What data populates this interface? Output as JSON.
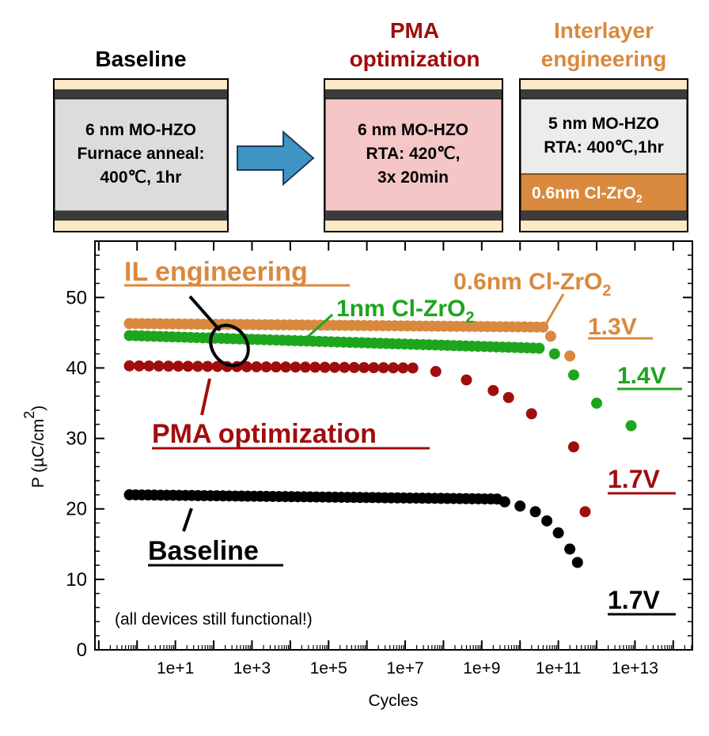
{
  "panels": [
    {
      "title_lines": [
        "Baseline"
      ],
      "title_color": "#000000",
      "fill": "#dcdcdc",
      "lines": [
        "6 nm MO-HZO",
        "Furnace anneal:",
        "400℃, 1hr"
      ]
    },
    {
      "title_lines": [
        "PMA",
        "optimization"
      ],
      "title_color": "#a00d0d",
      "fill": "#f4c6c6",
      "lines": [
        "6 nm MO-HZO",
        "RTA: 420℃,",
        "3x 20min"
      ]
    },
    {
      "title_lines": [
        "Interlayer",
        "engineering"
      ],
      "title_color": "#d9893e",
      "fill": "#ececec",
      "lines": [
        "5 nm MO-HZO",
        "RTA: 400℃,1hr"
      ],
      "interlayer": "0.6nm Cl-ZrO",
      "interlayer_sub": "2",
      "interlayer_fill": "#d9893e"
    }
  ],
  "colors": {
    "electrode": "#fbe8c4",
    "dark_layer": "#3b3b3b",
    "arrow": "#3f94c4"
  },
  "chart_data": {
    "type": "scatter",
    "xlabel": "Cycles",
    "ylabel": "P (µC/cm",
    "ylabel_sup": "2",
    "ylabel_close": ")",
    "x_scale": "log",
    "xlim": [
      1,
      100000000000000.0
    ],
    "ylim": [
      0,
      58
    ],
    "y_ticks": [
      0,
      10,
      20,
      30,
      40,
      50
    ],
    "x_tick_labels": [
      "1e+1",
      "1e+3",
      "1e+5",
      "1e+7",
      "1e+9",
      "1e+11",
      "1e+13"
    ],
    "x_tick_exponents": [
      1,
      3,
      5,
      7,
      9,
      11,
      13
    ],
    "grid": false,
    "series": [
      {
        "key": "il",
        "color": "#d9893e",
        "radius": 7,
        "points": [
          [
            -0.2,
            46.3
          ],
          [
            10.8,
            44.5
          ],
          [
            11.3,
            41.7
          ]
        ],
        "flat": [
          -0.2,
          10.6,
          46.3,
          45.8
        ],
        "n": 68
      },
      {
        "key": "cl1",
        "color": "#1ea51e",
        "radius": 7,
        "points": [
          [
            -0.2,
            44.6
          ],
          [
            10.9,
            42.0
          ],
          [
            11.4,
            39.0
          ],
          [
            12.0,
            35.0
          ],
          [
            12.9,
            31.8
          ]
        ],
        "flat": [
          -0.2,
          10.5,
          44.6,
          42.8
        ],
        "n": 68
      },
      {
        "key": "pma",
        "color": "#a00d0d",
        "radius": 7,
        "points": [
          [
            -0.2,
            40.3
          ],
          [
            7.8,
            39.5
          ],
          [
            8.6,
            38.3
          ],
          [
            9.3,
            36.8
          ],
          [
            9.7,
            35.8
          ],
          [
            10.3,
            33.5
          ],
          [
            11.4,
            28.8
          ],
          [
            11.7,
            19.6
          ]
        ],
        "flat": [
          -0.2,
          7.2,
          40.3,
          40.0
        ],
        "n": 30
      },
      {
        "key": "base",
        "color": "#000000",
        "radius": 7,
        "points": [
          [
            -0.2,
            22.0
          ],
          [
            9.6,
            21.0
          ],
          [
            10.0,
            20.4
          ],
          [
            10.4,
            19.6
          ],
          [
            10.7,
            18.3
          ],
          [
            11.0,
            16.6
          ],
          [
            11.3,
            14.3
          ],
          [
            11.5,
            12.4
          ]
        ],
        "flat": [
          -0.2,
          9.4,
          22.0,
          21.4
        ],
        "n": 60
      }
    ],
    "annotations": {
      "il_eng": "IL engineering",
      "cl06": "0.6nm Cl-ZrO",
      "cl06_sub": "2",
      "cl1": "1nm Cl-ZrO",
      "cl1_sub": "2",
      "v13": "1.3V",
      "v14": "1.4V",
      "pma": "PMA optimization",
      "v17a": "1.7V",
      "base": "Baseline",
      "v17b": "1.7V",
      "note": "(all devices still functional!)"
    }
  }
}
